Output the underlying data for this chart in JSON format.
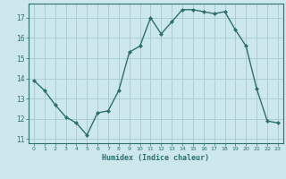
{
  "x": [
    0,
    1,
    2,
    3,
    4,
    5,
    6,
    7,
    8,
    9,
    10,
    11,
    12,
    13,
    14,
    15,
    16,
    17,
    18,
    19,
    20,
    21,
    22,
    23
  ],
  "y": [
    13.9,
    13.4,
    12.7,
    12.1,
    11.8,
    11.2,
    12.3,
    12.4,
    13.4,
    15.3,
    15.6,
    17.0,
    16.2,
    16.8,
    17.4,
    17.4,
    17.3,
    17.2,
    17.3,
    16.4,
    15.6,
    13.5,
    11.9,
    11.8
  ],
  "xlabel": "Humidex (Indice chaleur)",
  "bg_color": "#cce8ec",
  "line_color": "#2d6e6e",
  "grid_major_color": "#aacdd4",
  "grid_minor_color": "#c0dde2",
  "ylim": [
    10.8,
    17.7
  ],
  "xlim": [
    -0.5,
    23.5
  ],
  "yticks": [
    11,
    12,
    13,
    14,
    15,
    16,
    17
  ],
  "xticks": [
    0,
    1,
    2,
    3,
    4,
    5,
    6,
    7,
    8,
    9,
    10,
    11,
    12,
    13,
    14,
    15,
    16,
    17,
    18,
    19,
    20,
    21,
    22,
    23
  ]
}
